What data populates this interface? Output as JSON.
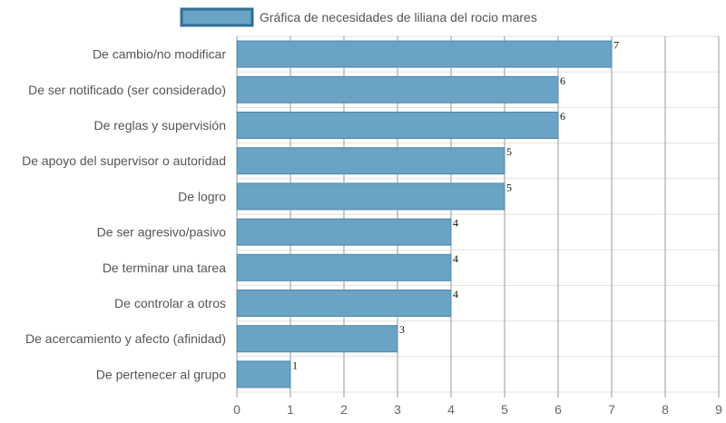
{
  "chart_data": {
    "type": "bar",
    "orientation": "horizontal",
    "categories": [
      "De cambio/no modificar",
      "De ser notificado (ser considerado)",
      "De reglas y supervisión",
      "De apoyo del supervisor o autoridad",
      "De logro",
      "De ser agresivo/pasivo",
      "De terminar una tarea",
      "De controlar a otros",
      "De acercamiento y afecto (afinidad)",
      "De pertenecer al grupo"
    ],
    "series": [
      {
        "name": "Gráfica de necesidades de liliana del rocio mares",
        "values": [
          7,
          6,
          6,
          5,
          5,
          4,
          4,
          4,
          3,
          1
        ]
      }
    ],
    "xlim": [
      0,
      9
    ],
    "x_ticks": [
      "0",
      "1",
      "2",
      "3",
      "4",
      "5",
      "6",
      "7",
      "8",
      "9"
    ],
    "grid": true,
    "legend_position": "top",
    "colors": {
      "bar_fill": "#6aa3c3",
      "bar_stroke": "#4e88aa",
      "legend_fill": "#6aa3c3",
      "legend_stroke": "#2e6f96",
      "grid_vertical": "#9a9a9a",
      "grid_horizontal": "#e2e2e2"
    }
  }
}
